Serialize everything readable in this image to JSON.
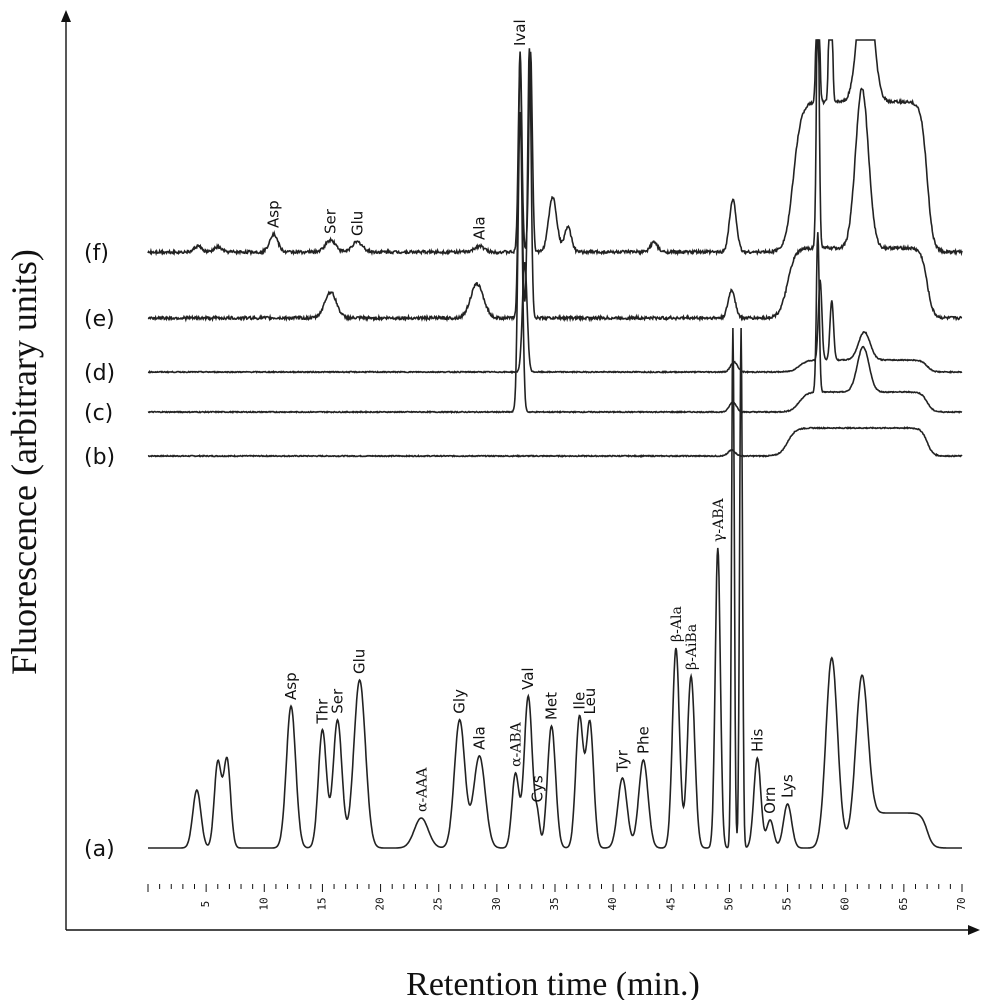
{
  "chart_data": {
    "type": "line",
    "xlabel": "Retention time (min.)",
    "ylabel": "Fluorescence (arbitrary units)",
    "x_range": [
      0,
      70
    ],
    "x_ticks": [
      5,
      10,
      15,
      20,
      25,
      30,
      35,
      40,
      45,
      50,
      55,
      60,
      65,
      70
    ],
    "x_tick_labels": [
      "5",
      "10",
      "15",
      "20",
      "25",
      "30",
      "35",
      "40",
      "45",
      "50",
      "55",
      "60",
      "65",
      "70"
    ],
    "traces": [
      {
        "id": "a",
        "label": "(a)",
        "noise": 0,
        "baseline": 848,
        "peaks": [
          {
            "t": 4.2,
            "h": 58,
            "w": 0.35
          },
          {
            "t": 6.0,
            "h": 85,
            "w": 0.3
          },
          {
            "t": 6.8,
            "h": 88,
            "w": 0.3
          },
          {
            "t": 12.3,
            "h": 142,
            "w": 0.4,
            "label": "Asp"
          },
          {
            "t": 15.0,
            "h": 118,
            "w": 0.35,
            "label": "Thr"
          },
          {
            "t": 16.3,
            "h": 128,
            "w": 0.38,
            "label": "Ser"
          },
          {
            "t": 18.2,
            "h": 168,
            "w": 0.5,
            "label": "Glu"
          },
          {
            "t": 23.5,
            "h": 30,
            "w": 0.6,
            "label": "α-ΑΑΑ",
            "serif": true
          },
          {
            "t": 26.8,
            "h": 128,
            "w": 0.45,
            "label": "Gly"
          },
          {
            "t": 28.5,
            "h": 92,
            "w": 0.5,
            "label": "Ala"
          },
          {
            "t": 31.6,
            "h": 74,
            "w": 0.3,
            "label": "α-ABA",
            "serif": true
          },
          {
            "t": 32.7,
            "h": 152,
            "w": 0.35,
            "label": "Val"
          },
          {
            "t": 33.5,
            "h": 28,
            "w": 0.2,
            "label": "Cys"
          },
          {
            "t": 34.7,
            "h": 122,
            "w": 0.35,
            "label": "Met"
          },
          {
            "t": 37.1,
            "h": 130,
            "w": 0.32,
            "label": "Ile"
          },
          {
            "t": 38.0,
            "h": 125,
            "w": 0.32,
            "label": "Leu"
          },
          {
            "t": 40.8,
            "h": 70,
            "w": 0.4,
            "label": "Tyr"
          },
          {
            "t": 42.6,
            "h": 88,
            "w": 0.4,
            "label": "Phe"
          },
          {
            "t": 45.4,
            "h": 200,
            "w": 0.3,
            "label": "β-Ala",
            "serif": true
          },
          {
            "t": 46.7,
            "h": 172,
            "w": 0.32,
            "label": "β-AiBa",
            "serif": true
          },
          {
            "t": 49.0,
            "h": 300,
            "w": 0.22,
            "label": "γ-ABA",
            "serif": true
          },
          {
            "t": 50.3,
            "h": 520,
            "w": 0.12
          },
          {
            "t": 51.0,
            "h": 520,
            "w": 0.12
          },
          {
            "t": 52.4,
            "h": 90,
            "w": 0.3,
            "label": "His"
          },
          {
            "t": 53.5,
            "h": 28,
            "w": 0.3,
            "label": "Orn"
          },
          {
            "t": 55.0,
            "h": 44,
            "w": 0.35,
            "label": "Lys"
          },
          {
            "t": 58.8,
            "h": 190,
            "w": 0.5
          },
          {
            "t": 61.4,
            "h": 140,
            "w": 0.5
          }
        ],
        "steps": [
          {
            "t0": 60.5,
            "t1": 67.0,
            "h": 35
          }
        ]
      },
      {
        "id": "b",
        "label": "(b)",
        "noise": 1,
        "baseline": 456,
        "peaks": [
          {
            "t": 50.2,
            "h": 6,
            "w": 0.3
          }
        ],
        "steps": [
          {
            "t0": 55.0,
            "t1": 67.0,
            "h": 28
          }
        ]
      },
      {
        "id": "c",
        "label": "(c)",
        "noise": 1,
        "baseline": 412,
        "peaks": [
          {
            "t": 32.0,
            "h": 300,
            "w": 0.18
          },
          {
            "t": 50.3,
            "h": 10,
            "w": 0.3
          },
          {
            "t": 57.6,
            "h": 160,
            "w": 0.12
          },
          {
            "t": 61.5,
            "h": 45,
            "w": 0.5
          }
        ],
        "steps": [
          {
            "t0": 56.0,
            "t1": 67.0,
            "h": 20
          }
        ]
      },
      {
        "id": "d",
        "label": "(d)",
        "noise": 1,
        "baseline": 372,
        "peaks": [
          {
            "t": 32.4,
            "h": 110,
            "w": 0.2
          },
          {
            "t": 50.4,
            "h": 10,
            "w": 0.3
          },
          {
            "t": 57.8,
            "h": 80,
            "w": 0.15
          },
          {
            "t": 58.8,
            "h": 60,
            "w": 0.15
          },
          {
            "t": 61.6,
            "h": 28,
            "w": 0.5
          }
        ],
        "steps": [
          {
            "t0": 56.0,
            "t1": 67.0,
            "h": 12
          }
        ]
      },
      {
        "id": "e",
        "label": "(e)",
        "noise": 3,
        "baseline": 318,
        "peaks": [
          {
            "t": 15.7,
            "h": 26,
            "w": 0.5
          },
          {
            "t": 28.3,
            "h": 34,
            "w": 0.55
          },
          {
            "t": 32.0,
            "h": 260,
            "w": 0.15
          },
          {
            "t": 32.8,
            "h": 270,
            "w": 0.15
          },
          {
            "t": 50.2,
            "h": 28,
            "w": 0.3
          },
          {
            "t": 57.6,
            "h": 260,
            "w": 0.12
          },
          {
            "t": 61.4,
            "h": 160,
            "w": 0.55
          }
        ],
        "steps": [
          {
            "t0": 55.0,
            "t1": 67.0,
            "h": 70
          }
        ]
      },
      {
        "id": "f",
        "label": "(f)",
        "noise": 3,
        "baseline": 252,
        "peaks": [
          {
            "t": 4.3,
            "h": 6,
            "w": 0.3
          },
          {
            "t": 6.0,
            "h": 5,
            "w": 0.3
          },
          {
            "t": 10.8,
            "h": 18,
            "w": 0.35,
            "label": "Asp"
          },
          {
            "t": 15.7,
            "h": 12,
            "w": 0.45,
            "label": "Ser"
          },
          {
            "t": 18.0,
            "h": 10,
            "w": 0.45,
            "label": "Glu"
          },
          {
            "t": 28.5,
            "h": 6,
            "w": 0.4,
            "label": "Ala"
          },
          {
            "t": 32.0,
            "h": 200,
            "w": 0.15,
            "label": "Ival"
          },
          {
            "t": 32.9,
            "h": 200,
            "w": 0.15
          },
          {
            "t": 34.8,
            "h": 55,
            "w": 0.35
          },
          {
            "t": 36.1,
            "h": 25,
            "w": 0.3
          },
          {
            "t": 43.5,
            "h": 10,
            "w": 0.3
          },
          {
            "t": 50.3,
            "h": 52,
            "w": 0.3
          },
          {
            "t": 57.6,
            "h": 200,
            "w": 0.12
          },
          {
            "t": 58.7,
            "h": 200,
            "w": 0.12
          },
          {
            "t": 61.7,
            "h": 150,
            "w": 0.6
          }
        ],
        "steps": [
          {
            "t0": 55.5,
            "t1": 67.0,
            "h": 150
          }
        ]
      }
    ]
  }
}
